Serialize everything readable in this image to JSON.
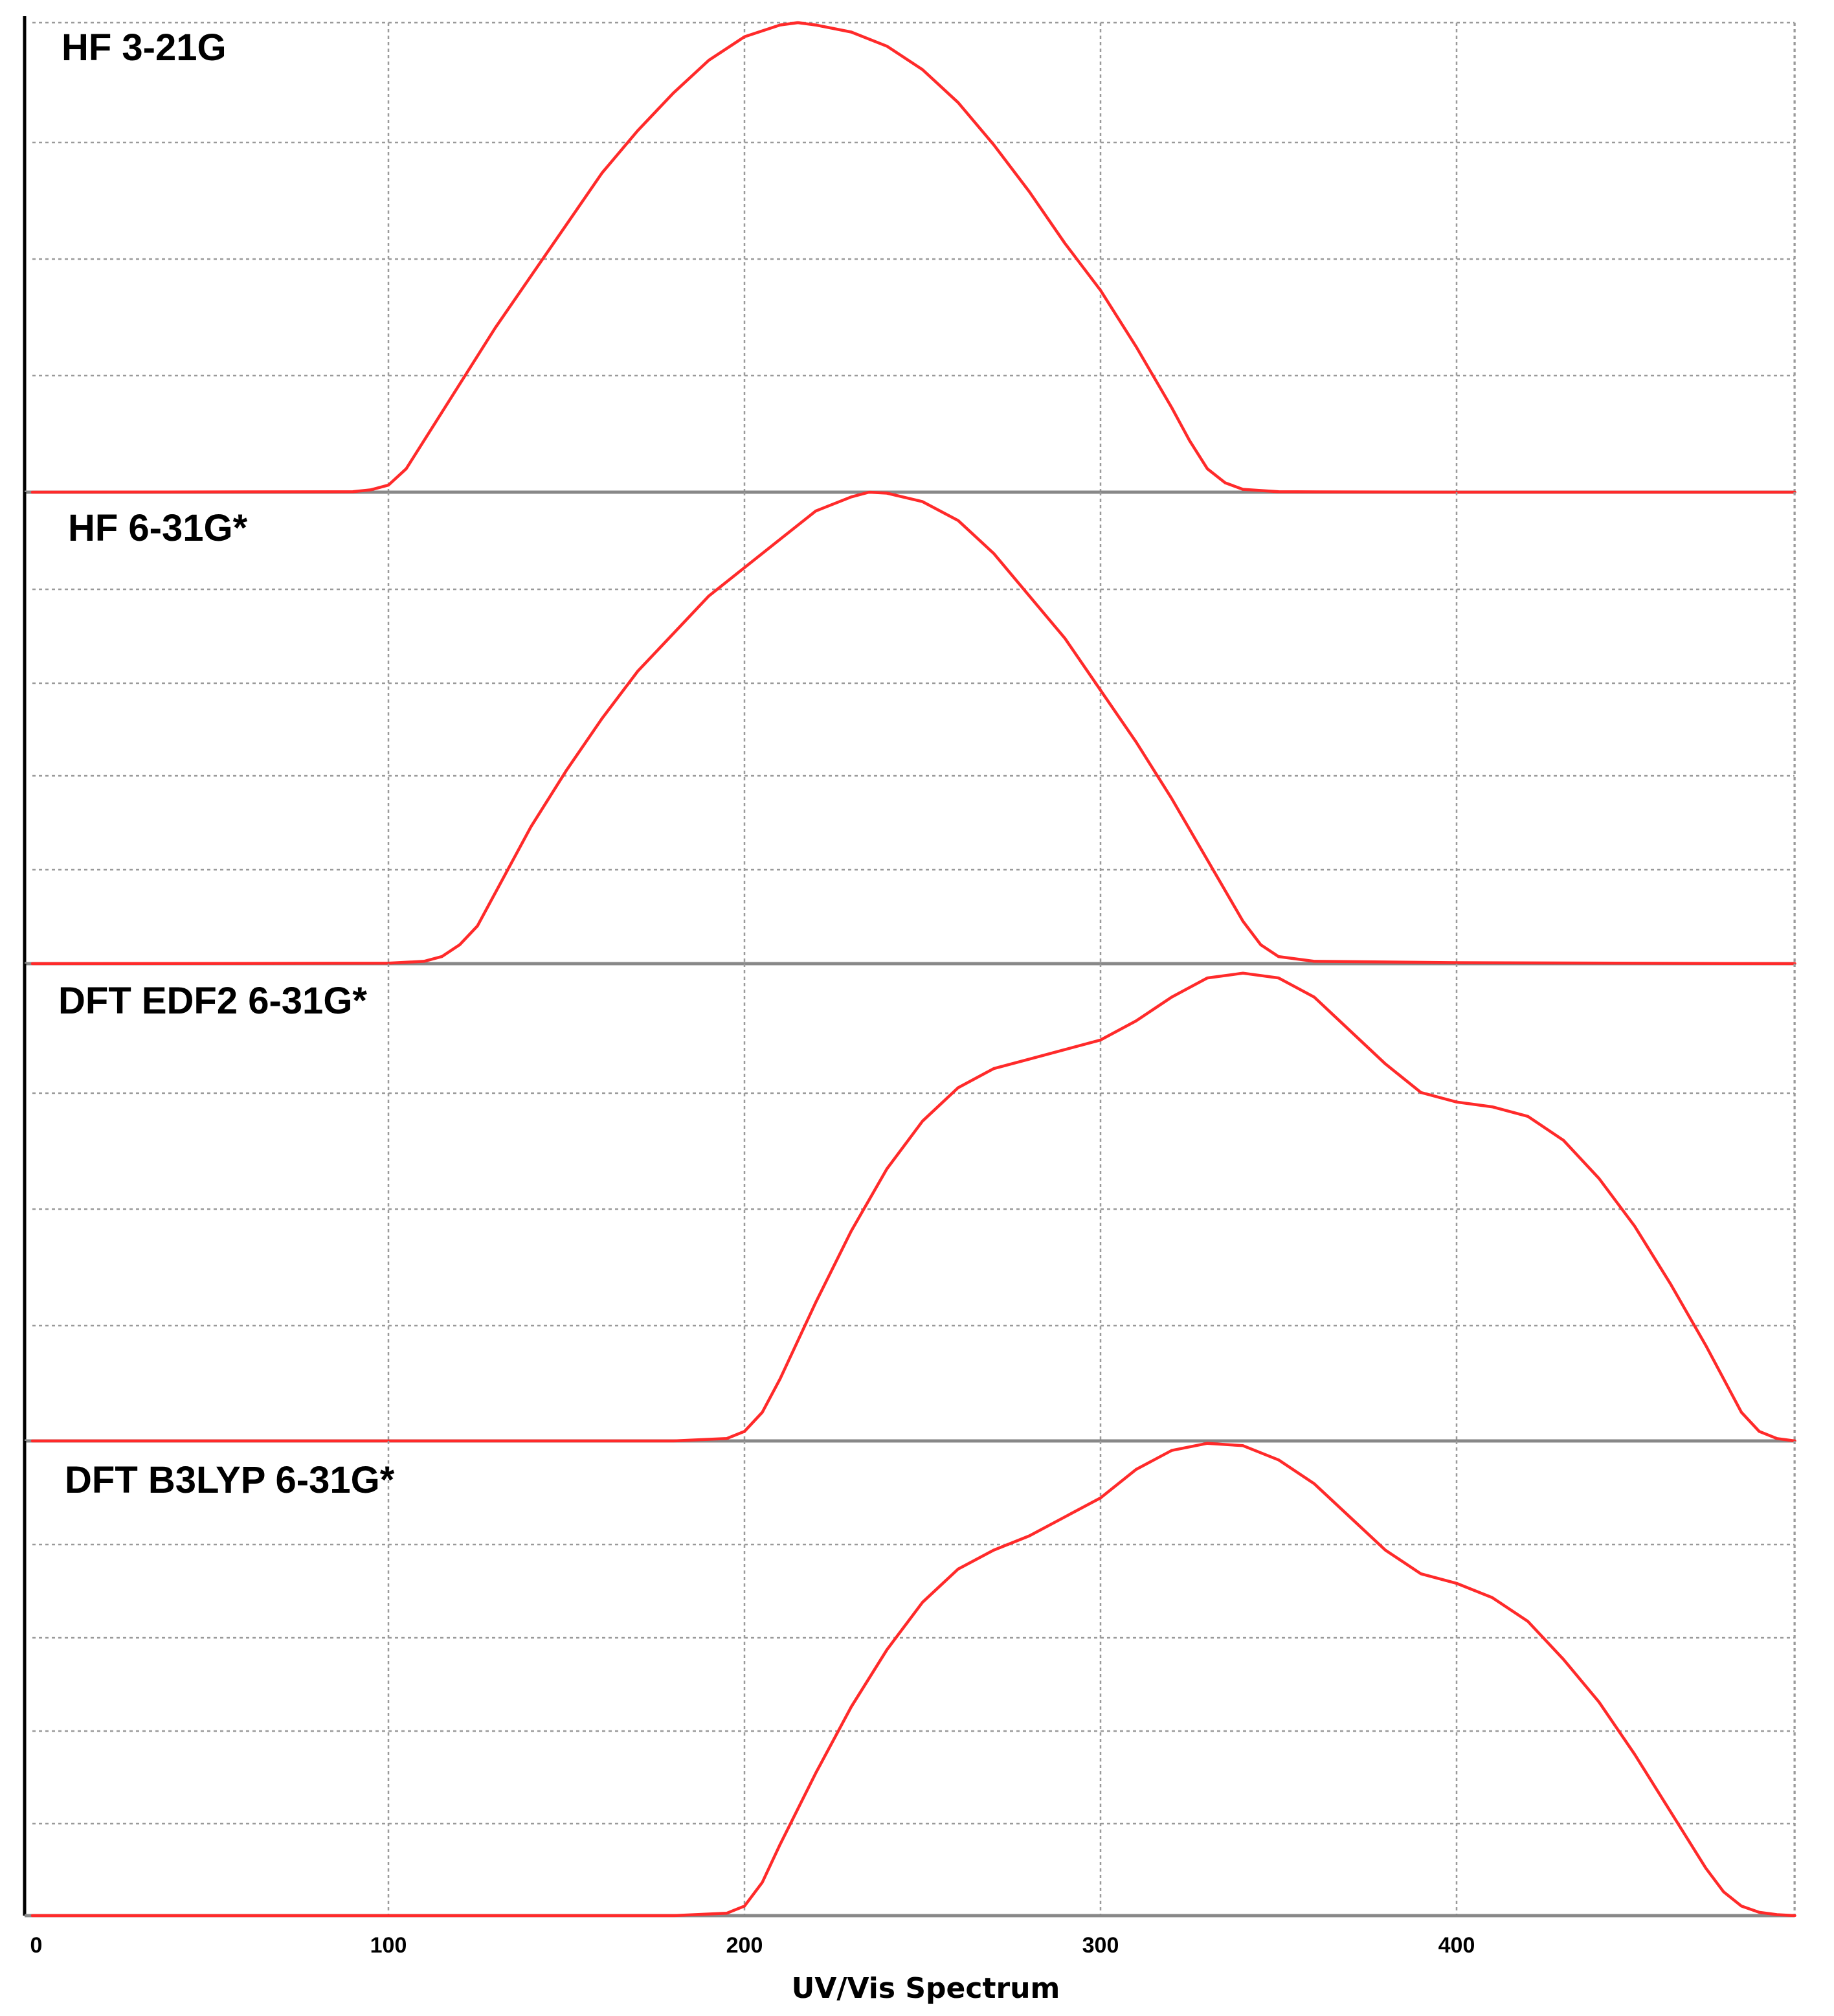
{
  "chart_data": [
    {
      "type": "line",
      "title": "HF 3-21G",
      "xlim": [
        0,
        495
      ],
      "ylim": [
        0,
        1
      ],
      "x_ticks": [
        100,
        200,
        300,
        400
      ],
      "grid": true,
      "series": [
        {
          "color": "#ff2a2a",
          "x": [
            0,
            90,
            95,
            100,
            105,
            110,
            115,
            120,
            130,
            140,
            150,
            160,
            170,
            180,
            190,
            200,
            210,
            215,
            220,
            230,
            240,
            250,
            260,
            270,
            280,
            290,
            300,
            310,
            320,
            325,
            330,
            335,
            340,
            350,
            400,
            495
          ],
          "y": [
            0,
            0.001,
            0.005,
            0.015,
            0.05,
            0.11,
            0.17,
            0.23,
            0.35,
            0.46,
            0.57,
            0.68,
            0.77,
            0.85,
            0.92,
            0.97,
            0.995,
            1.0,
            0.995,
            0.98,
            0.95,
            0.9,
            0.83,
            0.74,
            0.64,
            0.53,
            0.43,
            0.31,
            0.18,
            0.11,
            0.05,
            0.02,
            0.006,
            0.001,
            0,
            0
          ]
        }
      ]
    },
    {
      "type": "line",
      "title": "HF 6-31G*",
      "xlim": [
        0,
        495
      ],
      "ylim": [
        0,
        1
      ],
      "x_ticks": [
        100,
        200,
        300,
        400
      ],
      "grid": true,
      "series": [
        {
          "color": "#ff2a2a",
          "x": [
            0,
            100,
            110,
            115,
            120,
            125,
            130,
            140,
            150,
            160,
            170,
            180,
            190,
            200,
            210,
            220,
            230,
            235,
            240,
            250,
            260,
            270,
            280,
            290,
            300,
            310,
            320,
            330,
            340,
            345,
            350,
            360,
            400,
            495
          ],
          "y": [
            0,
            0.001,
            0.005,
            0.015,
            0.04,
            0.08,
            0.15,
            0.29,
            0.41,
            0.52,
            0.62,
            0.7,
            0.78,
            0.84,
            0.9,
            0.96,
            0.99,
            1.0,
            0.998,
            0.98,
            0.94,
            0.87,
            0.78,
            0.69,
            0.58,
            0.47,
            0.35,
            0.22,
            0.09,
            0.04,
            0.015,
            0.005,
            0.002,
            0
          ]
        }
      ]
    },
    {
      "type": "line",
      "title": "DFT EDF2 6-31G*",
      "xlim": [
        0,
        495
      ],
      "ylim": [
        0,
        1
      ],
      "x_ticks": [
        100,
        200,
        300,
        400
      ],
      "grid": true,
      "series": [
        {
          "color": "#ff2a2a",
          "x": [
            0,
            180,
            195,
            200,
            205,
            210,
            220,
            230,
            240,
            250,
            260,
            270,
            280,
            290,
            300,
            310,
            320,
            330,
            340,
            350,
            360,
            370,
            380,
            390,
            400,
            410,
            420,
            430,
            440,
            450,
            460,
            470,
            475,
            480,
            485,
            490,
            495
          ],
          "y": [
            0,
            0,
            0.005,
            0.02,
            0.06,
            0.13,
            0.29,
            0.44,
            0.57,
            0.67,
            0.74,
            0.78,
            0.8,
            0.82,
            0.84,
            0.88,
            0.93,
            0.97,
            0.98,
            0.97,
            0.93,
            0.86,
            0.79,
            0.73,
            0.71,
            0.7,
            0.68,
            0.63,
            0.55,
            0.45,
            0.33,
            0.2,
            0.13,
            0.06,
            0.02,
            0.005,
            0
          ]
        }
      ]
    },
    {
      "type": "line",
      "title": "DFT B3LYP 6-31G*",
      "xlim": [
        0,
        495
      ],
      "ylim": [
        0,
        1
      ],
      "x_ticks": [
        0,
        100,
        200,
        300,
        400
      ],
      "x_tick_labels": [
        "0",
        "100",
        "200",
        "300",
        "400"
      ],
      "xlabel": "UV/Vis Spectrum",
      "grid": true,
      "series": [
        {
          "color": "#ff2a2a",
          "x": [
            0,
            180,
            195,
            200,
            205,
            210,
            220,
            230,
            240,
            250,
            260,
            270,
            280,
            290,
            300,
            310,
            320,
            330,
            340,
            350,
            360,
            370,
            380,
            390,
            400,
            410,
            420,
            430,
            440,
            450,
            460,
            470,
            475,
            480,
            485,
            490,
            495
          ],
          "y": [
            0,
            0,
            0.005,
            0.02,
            0.07,
            0.15,
            0.3,
            0.44,
            0.56,
            0.66,
            0.73,
            0.77,
            0.8,
            0.84,
            0.88,
            0.94,
            0.98,
            0.995,
            0.99,
            0.96,
            0.91,
            0.84,
            0.77,
            0.72,
            0.7,
            0.67,
            0.62,
            0.54,
            0.45,
            0.34,
            0.22,
            0.1,
            0.05,
            0.02,
            0.007,
            0.002,
            0
          ]
        }
      ]
    }
  ]
}
